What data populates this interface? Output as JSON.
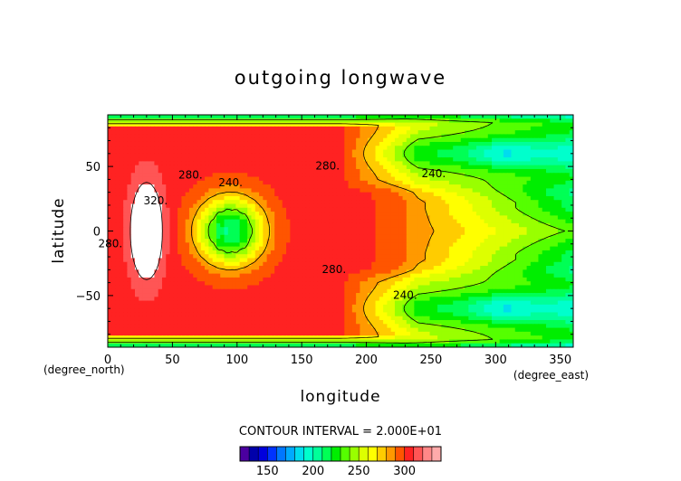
{
  "chart_data": {
    "type": "heatmap",
    "title": "outgoing longwave",
    "xlabel": "longitude",
    "ylabel": "latitude",
    "x_unit": "(degree_east)",
    "y_unit": "(degree_north)",
    "xlim": [
      0,
      360
    ],
    "ylim": [
      -90,
      90
    ],
    "x_ticks": [
      0,
      50,
      100,
      150,
      200,
      250,
      300,
      350
    ],
    "y_ticks": [
      -50,
      0,
      50
    ],
    "x_tick_labels": [
      "0",
      "50",
      "100",
      "150",
      "200",
      "250",
      "300",
      "350"
    ],
    "y_tick_labels": [
      "−50",
      "0",
      "50"
    ],
    "contour_interval_text": "CONTOUR INTERVAL = 2.000E+01",
    "contour_interval": 20,
    "contour_lines": [
      240,
      280,
      320
    ],
    "contour_labels": [
      {
        "text": "240.",
        "lon": 95,
        "lat": 37
      },
      {
        "text": "280.",
        "lon": 64,
        "lat": 43
      },
      {
        "text": "320.",
        "lon": 37,
        "lat": 23
      },
      {
        "text": "280.",
        "lon": 2,
        "lat": -10
      },
      {
        "text": "280.",
        "lon": 170,
        "lat": 50
      },
      {
        "text": "240.",
        "lon": 252,
        "lat": 44
      },
      {
        "text": "280.",
        "lon": 175,
        "lat": -30
      },
      {
        "text": "240.",
        "lon": 230,
        "lat": -50
      }
    ],
    "features": [
      {
        "name": "high OLR ring",
        "center_lon": 95,
        "center_lat": 0,
        "value": 300
      },
      {
        "name": "low OLR center",
        "center_lon": 95,
        "center_lat": 0,
        "value": 210
      },
      {
        "name": "western maximum",
        "center_lon": 28,
        "center_lat": 0,
        "value": 330
      },
      {
        "name": "northern minimum",
        "center_lon": 305,
        "center_lat": 60,
        "value": 200
      },
      {
        "name": "southern minimum",
        "center_lon": 305,
        "center_lat": -60,
        "value": 200
      }
    ],
    "colorbar": {
      "min": 120,
      "max": 340,
      "step": 10,
      "tick_values": [
        150,
        200,
        250,
        300
      ],
      "tick_labels": [
        "150",
        "200",
        "250",
        "300"
      ],
      "colors": [
        "#4b00a0",
        "#0000aa",
        "#0000dd",
        "#0033ff",
        "#0077ff",
        "#00aaff",
        "#00ddee",
        "#00ffcc",
        "#00ff99",
        "#00ff55",
        "#00ee00",
        "#55ff00",
        "#99ff00",
        "#ddff00",
        "#ffff00",
        "#ffcc00",
        "#ff9900",
        "#ff5500",
        "#ff2222",
        "#ff5555",
        "#ff8888",
        "#ffaaaa"
      ]
    }
  }
}
